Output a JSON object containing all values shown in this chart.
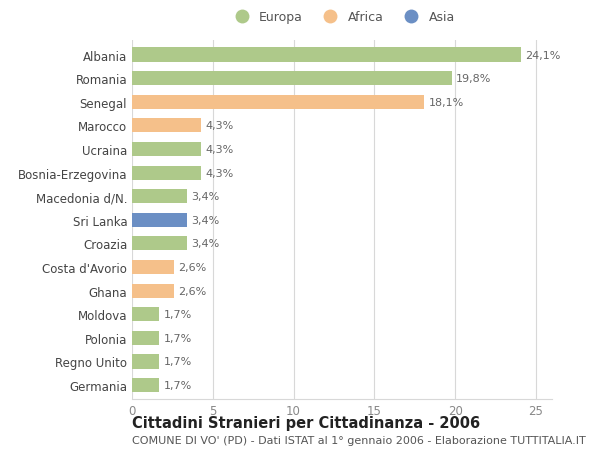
{
  "title": "Cittadini Stranieri per Cittadinanza - 2006",
  "subtitle": "COMUNE DI VO' (PD) - Dati ISTAT al 1° gennaio 2006 - Elaborazione TUTTITALIA.IT",
  "categories": [
    "Albania",
    "Romania",
    "Senegal",
    "Marocco",
    "Ucraina",
    "Bosnia-Erzegovina",
    "Macedonia d/N.",
    "Sri Lanka",
    "Croazia",
    "Costa d'Avorio",
    "Ghana",
    "Moldova",
    "Polonia",
    "Regno Unito",
    "Germania"
  ],
  "values": [
    24.1,
    19.8,
    18.1,
    4.3,
    4.3,
    4.3,
    3.4,
    3.4,
    3.4,
    2.6,
    2.6,
    1.7,
    1.7,
    1.7,
    1.7
  ],
  "labels": [
    "24,1%",
    "19,8%",
    "18,1%",
    "4,3%",
    "4,3%",
    "4,3%",
    "3,4%",
    "3,4%",
    "3,4%",
    "2,6%",
    "2,6%",
    "1,7%",
    "1,7%",
    "1,7%",
    "1,7%"
  ],
  "colors": [
    "#aec98a",
    "#aec98a",
    "#f5c08a",
    "#f5c08a",
    "#aec98a",
    "#aec98a",
    "#aec98a",
    "#6b8fc4",
    "#aec98a",
    "#f5c08a",
    "#f5c08a",
    "#aec98a",
    "#aec98a",
    "#aec98a",
    "#aec98a"
  ],
  "legend": [
    {
      "label": "Europa",
      "color": "#aec98a"
    },
    {
      "label": "Africa",
      "color": "#f5c08a"
    },
    {
      "label": "Asia",
      "color": "#6b8fc4"
    }
  ],
  "xlim": [
    0,
    26
  ],
  "xticks": [
    0,
    5,
    10,
    15,
    20,
    25
  ],
  "bg_color": "#ffffff",
  "bar_height": 0.6,
  "grid_color": "#d8d8d8",
  "title_fontsize": 10.5,
  "subtitle_fontsize": 8,
  "tick_fontsize": 8.5,
  "label_fontsize": 8
}
